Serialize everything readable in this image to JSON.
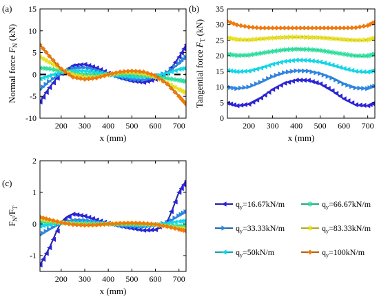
{
  "chart_data": [
    {
      "panel": "(a)",
      "type": "line",
      "ylabel_main": "Normal force",
      "ylabel_var": "F",
      "ylabel_sub": "N",
      "ylabel_unit": "(kN)",
      "xlabel": "x (mm)",
      "xlim": [
        110,
        730
      ],
      "ylim": [
        -10,
        15
      ],
      "xticks": [
        200,
        300,
        400,
        500,
        600,
        700
      ],
      "yticks": [
        -10,
        -5,
        0,
        5,
        10,
        15
      ],
      "x": [
        110,
        150,
        200,
        250,
        300,
        350,
        400,
        450,
        500,
        550,
        600,
        650,
        700,
        730
      ],
      "series": [
        {
          "name": "q_y=16.67kN/m",
          "color": "#2b24d8",
          "marker": "tri-left",
          "values": [
            -6.3,
            -3.0,
            0.2,
            2.0,
            2.3,
            1.5,
            0.3,
            -0.8,
            -1.5,
            -1.8,
            -1.1,
            0.4,
            4.0,
            6.8
          ]
        },
        {
          "name": "q_y=33.33kN/m",
          "color": "#2f86e0",
          "marker": "tri-right",
          "values": [
            -3.5,
            -1.6,
            0.3,
            1.4,
            1.6,
            1.0,
            0.1,
            -0.6,
            -1.1,
            -1.2,
            -0.6,
            0.5,
            2.5,
            4.0
          ]
        },
        {
          "name": "q_y=50kN/m",
          "color": "#12d8e8",
          "marker": "tri-left",
          "values": [
            -1.0,
            -0.3,
            0.5,
            0.8,
            0.8,
            0.5,
            0.0,
            -0.3,
            -0.5,
            -0.5,
            -0.3,
            0.3,
            1.2,
            1.5
          ]
        },
        {
          "name": "q_y=66.67kN/m",
          "color": "#2ee0a0",
          "marker": "star",
          "values": [
            1.5,
            1.3,
            0.8,
            0.3,
            0.0,
            -0.1,
            0.0,
            0.1,
            0.0,
            -0.2,
            -0.5,
            -0.9,
            -1.3,
            -1.6
          ]
        },
        {
          "name": "q_y=83.33kN/m",
          "color": "#e8e020",
          "marker": "star",
          "values": [
            4.0,
            2.8,
            1.2,
            0.0,
            -0.6,
            -0.6,
            -0.1,
            0.4,
            0.5,
            0.2,
            -0.6,
            -1.9,
            -3.4,
            -4.2
          ]
        },
        {
          "name": "q_y=100kN/m",
          "color": "#f07a0c",
          "marker": "diamond",
          "values": [
            6.8,
            4.2,
            1.3,
            -0.6,
            -1.1,
            -0.8,
            0.0,
            0.6,
            0.8,
            0.6,
            -0.3,
            -2.2,
            -5.0,
            -6.8
          ]
        }
      ],
      "ref_line": {
        "y": 0,
        "style": "dashed",
        "color": "#000000"
      }
    },
    {
      "panel": "(b)",
      "type": "line",
      "ylabel_main": "Tangential force",
      "ylabel_var": "F",
      "ylabel_sub": "T",
      "ylabel_unit": "(kN)",
      "xlabel": "x (mm)",
      "xlim": [
        110,
        730
      ],
      "ylim": [
        0,
        35
      ],
      "xticks": [
        200,
        300,
        400,
        500,
        600,
        700
      ],
      "yticks": [
        0,
        5,
        10,
        15,
        20,
        25,
        30,
        35
      ],
      "x": [
        110,
        150,
        200,
        250,
        300,
        350,
        400,
        450,
        500,
        550,
        600,
        650,
        700,
        730
      ],
      "series": [
        {
          "name": "q_y=16.67kN/m",
          "color": "#2b24d8",
          "marker": "tri-left",
          "values": [
            4.8,
            4.0,
            4.5,
            6.5,
            9.2,
            11.2,
            12.2,
            12.1,
            11.0,
            8.8,
            6.2,
            4.3,
            4.0,
            5.0
          ]
        },
        {
          "name": "q_y=33.33kN/m",
          "color": "#2f86e0",
          "marker": "tri-right",
          "values": [
            10.0,
            9.5,
            10.0,
            11.5,
            13.3,
            14.6,
            15.2,
            15.1,
            14.3,
            12.9,
            11.0,
            9.7,
            9.5,
            10.3
          ]
        },
        {
          "name": "q_y=50kN/m",
          "color": "#12d8e8",
          "marker": "tri-left",
          "values": [
            15.3,
            14.9,
            15.1,
            16.1,
            17.3,
            18.2,
            18.6,
            18.5,
            18.0,
            17.0,
            15.9,
            15.0,
            14.8,
            15.4
          ]
        },
        {
          "name": "q_y=66.67kN/m",
          "color": "#2ee0a0",
          "marker": "star",
          "values": [
            20.5,
            20.1,
            20.2,
            20.8,
            21.4,
            21.9,
            22.1,
            22.0,
            21.7,
            21.1,
            20.5,
            20.0,
            20.0,
            20.5
          ]
        },
        {
          "name": "q_y=83.33kN/m",
          "color": "#e8e020",
          "marker": "star",
          "values": [
            25.8,
            25.2,
            25.1,
            25.4,
            25.7,
            25.9,
            26.0,
            25.9,
            25.8,
            25.5,
            25.2,
            25.0,
            25.1,
            25.7
          ]
        },
        {
          "name": "q_y=100kN/m",
          "color": "#f07a0c",
          "marker": "diamond",
          "values": [
            31.0,
            29.9,
            29.2,
            28.9,
            28.9,
            28.9,
            28.9,
            28.9,
            28.9,
            28.9,
            28.9,
            29.0,
            29.7,
            30.8
          ]
        }
      ]
    },
    {
      "panel": "(c)",
      "type": "line",
      "ylabel_main": "F",
      "ylabel_sub": "N",
      "ylabel_mid": "/F",
      "ylabel_sub2": "T",
      "xlabel": "x (mm)",
      "xlim": [
        110,
        730
      ],
      "ylim": [
        -1.5,
        2.0
      ],
      "xticks": [
        200,
        300,
        400,
        500,
        600,
        700
      ],
      "yticks": [
        -1,
        0,
        1,
        2
      ],
      "x": [
        110,
        150,
        200,
        250,
        300,
        350,
        400,
        450,
        500,
        550,
        600,
        650,
        700,
        730
      ],
      "series": [
        {
          "name": "q_y=16.67kN/m",
          "color": "#2b24d8",
          "marker": "tri-left",
          "values": [
            -1.3,
            -0.75,
            0.04,
            0.31,
            0.25,
            0.13,
            0.02,
            -0.07,
            -0.14,
            -0.2,
            -0.18,
            0.09,
            1.0,
            1.36
          ]
        },
        {
          "name": "q_y=33.33kN/m",
          "color": "#2f86e0",
          "marker": "tri-right",
          "values": [
            -0.35,
            -0.17,
            0.03,
            0.12,
            0.12,
            0.07,
            0.01,
            -0.04,
            -0.08,
            -0.09,
            -0.05,
            0.05,
            0.26,
            0.39
          ]
        },
        {
          "name": "q_y=50kN/m",
          "color": "#12d8e8",
          "marker": "tri-left",
          "values": [
            -0.07,
            -0.02,
            0.03,
            0.05,
            0.05,
            0.03,
            0.0,
            -0.02,
            -0.03,
            -0.03,
            -0.02,
            0.02,
            0.08,
            0.1
          ]
        },
        {
          "name": "q_y=66.67kN/m",
          "color": "#2ee0a0",
          "marker": "star",
          "values": [
            0.07,
            0.06,
            0.04,
            0.01,
            0.0,
            0.0,
            0.0,
            0.0,
            0.0,
            -0.01,
            -0.02,
            -0.05,
            -0.07,
            -0.08
          ]
        },
        {
          "name": "q_y=83.33kN/m",
          "color": "#e8e020",
          "marker": "star",
          "values": [
            0.16,
            0.11,
            0.05,
            0.0,
            -0.02,
            -0.02,
            0.0,
            0.02,
            0.02,
            0.01,
            -0.02,
            -0.08,
            -0.14,
            -0.16
          ]
        },
        {
          "name": "q_y=100kN/m",
          "color": "#f07a0c",
          "marker": "diamond",
          "values": [
            0.22,
            0.14,
            0.04,
            -0.02,
            -0.04,
            -0.03,
            0.0,
            0.02,
            0.03,
            0.02,
            -0.01,
            -0.08,
            -0.17,
            -0.22
          ]
        }
      ]
    }
  ],
  "legend": [
    {
      "pre": "q",
      "sub": "y",
      "post": "=16.67kN/m",
      "color": "#2b24d8",
      "marker": "tri-left"
    },
    {
      "pre": "q",
      "sub": "y",
      "post": "=66.67kN/m",
      "color": "#2ee0a0",
      "marker": "star"
    },
    {
      "pre": "q",
      "sub": "y",
      "post": "=33.33kN/m",
      "color": "#2f86e0",
      "marker": "tri-right"
    },
    {
      "pre": "q",
      "sub": "y",
      "post": "=83.33kN/m",
      "color": "#e8e020",
      "marker": "star"
    },
    {
      "pre": "q",
      "sub": "y",
      "post": "=50kN/m",
      "color": "#12d8e8",
      "marker": "tri-left"
    },
    {
      "pre": "q",
      "sub": "y",
      "post": "=100kN/m",
      "color": "#f07a0c",
      "marker": "diamond"
    }
  ]
}
